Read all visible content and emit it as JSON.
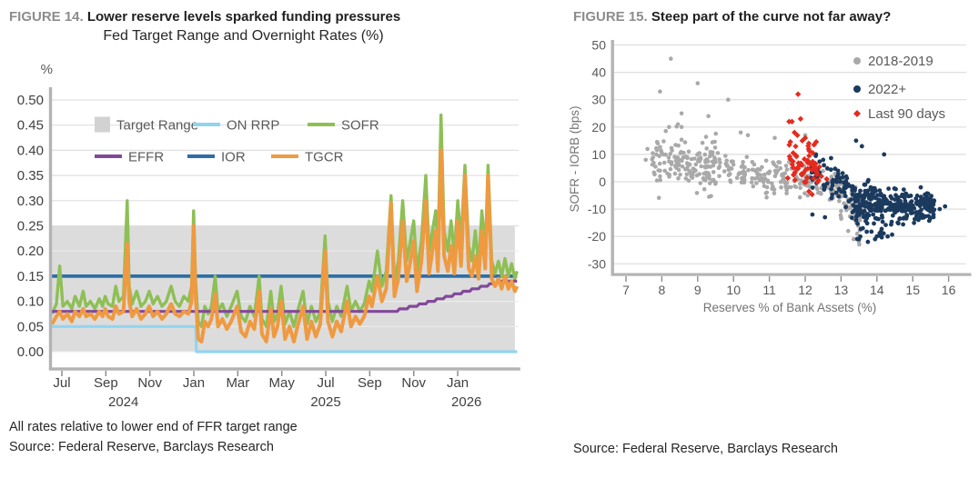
{
  "fig14": {
    "figure_label": "FIGURE 14.",
    "figure_title": "Lower reserve levels sparked funding pressures",
    "chart_title": "Fed Target Range and Overnight Rates (%)",
    "footnote": "All rates relative to lower end of FFR target range",
    "source": "Source: Federal Reserve, Barclays Research",
    "chart_data": {
      "type": "line",
      "unit_label": "%",
      "ylim": [
        0,
        0.5
      ],
      "ytick_step": 0.05,
      "xlim": [
        -0.45,
        20.77
      ],
      "xticks": [
        {
          "m": 0,
          "label": "Jul"
        },
        {
          "m": 2,
          "label": "Sep"
        },
        {
          "m": 4,
          "label": "Nov"
        },
        {
          "m": 6,
          "label": "Jan"
        },
        {
          "m": 8,
          "label": "Mar"
        },
        {
          "m": 10,
          "label": "May"
        },
        {
          "m": 12,
          "label": "Jul"
        },
        {
          "m": 14,
          "label": "Sep"
        },
        {
          "m": 16,
          "label": "Nov"
        },
        {
          "m": 18,
          "label": "Jan"
        }
      ],
      "year_labels": [
        {
          "m": 2.8,
          "label": "2024"
        },
        {
          "m": 12,
          "label": "2025"
        },
        {
          "m": 18.4,
          "label": "2026"
        }
      ],
      "target_range": {
        "label": "Target Range",
        "low": 0,
        "high": 0.25,
        "color": "#dcdcdc",
        "x_end": 20.6
      },
      "legend": [
        {
          "label": "Target Range",
          "color": "#d2d2d2",
          "swatch": "rect"
        },
        {
          "label": "ON RRP",
          "color": "#92d4f0",
          "swatch": "line"
        },
        {
          "label": "SOFR",
          "color": "#8ebf55",
          "swatch": "line"
        },
        {
          "label": "EFFR",
          "color": "#82489a",
          "swatch": "line"
        },
        {
          "label": "IOR",
          "color": "#2e6ea6",
          "swatch": "line"
        },
        {
          "label": "TGCR",
          "color": "#ef9a40",
          "swatch": "line"
        }
      ],
      "noisy": {
        "x": [
          -0.45,
          -0.25,
          -0.1,
          0.05,
          0.25,
          0.45,
          0.6,
          0.8,
          0.97,
          1.1,
          1.3,
          1.5,
          1.7,
          1.85,
          1.97,
          2.1,
          2.3,
          2.45,
          2.6,
          2.8,
          2.97,
          3.06,
          3.2,
          3.4,
          3.6,
          3.8,
          3.97,
          4.15,
          4.35,
          4.55,
          4.75,
          4.97,
          5.15,
          5.35,
          5.55,
          5.75,
          5.9,
          5.99,
          6.08,
          6.2,
          6.35,
          6.5,
          6.65,
          6.8,
          6.97,
          7.1,
          7.3,
          7.5,
          7.7,
          7.97,
          8.15,
          8.35,
          8.55,
          8.75,
          8.97,
          9.1,
          9.3,
          9.5,
          9.65,
          9.8,
          9.97,
          10.15,
          10.35,
          10.55,
          10.75,
          10.97,
          11.15,
          11.35,
          11.55,
          11.75,
          11.97,
          12.1,
          12.3,
          12.5,
          12.7,
          12.97,
          13.15,
          13.35,
          13.55,
          13.75,
          13.97,
          14.1,
          14.35,
          14.55,
          14.75,
          14.97,
          15.12,
          15.3,
          15.5,
          15.68,
          15.85,
          16.0,
          16.15,
          16.35,
          16.55,
          16.7,
          16.85,
          17.0,
          17.1,
          17.24,
          17.38,
          17.55,
          17.7,
          17.85,
          18.0,
          18.15,
          18.33,
          18.5,
          18.65,
          18.8,
          18.95,
          19.1,
          19.25,
          19.38,
          19.55,
          19.7,
          19.85,
          20.0,
          20.15,
          20.3,
          20.45,
          20.6,
          20.7
        ],
        "sofr": [
          0.075,
          0.095,
          0.17,
          0.09,
          0.1,
          0.085,
          0.11,
          0.09,
          0.12,
          0.09,
          0.1,
          0.085,
          0.105,
          0.09,
          0.11,
          0.095,
          0.09,
          0.13,
          0.1,
          0.11,
          0.3,
          0.13,
          0.095,
          0.12,
          0.09,
          0.1,
          0.12,
          0.095,
          0.11,
          0.09,
          0.1,
          0.13,
          0.1,
          0.09,
          0.11,
          0.1,
          0.13,
          0.28,
          0.14,
          0.06,
          0.05,
          0.09,
          0.075,
          0.09,
          0.15,
          0.08,
          0.095,
          0.07,
          0.09,
          0.12,
          0.07,
          0.06,
          0.09,
          0.07,
          0.15,
          0.065,
          0.05,
          0.12,
          0.06,
          0.075,
          0.13,
          0.055,
          0.08,
          0.05,
          0.085,
          0.12,
          0.055,
          0.09,
          0.06,
          0.08,
          0.23,
          0.1,
          0.06,
          0.09,
          0.07,
          0.13,
          0.08,
          0.1,
          0.08,
          0.095,
          0.14,
          0.12,
          0.2,
          0.13,
          0.16,
          0.31,
          0.14,
          0.18,
          0.3,
          0.18,
          0.22,
          0.26,
          0.16,
          0.22,
          0.35,
          0.2,
          0.24,
          0.28,
          0.2,
          0.47,
          0.24,
          0.2,
          0.26,
          0.19,
          0.3,
          0.22,
          0.37,
          0.21,
          0.18,
          0.24,
          0.17,
          0.28,
          0.2,
          0.37,
          0.18,
          0.155,
          0.18,
          0.15,
          0.185,
          0.15,
          0.175,
          0.145,
          0.16
        ],
        "tgcr": [
          0.055,
          0.07,
          0.08,
          0.065,
          0.075,
          0.06,
          0.08,
          0.07,
          0.085,
          0.07,
          0.075,
          0.065,
          0.08,
          0.07,
          0.085,
          0.07,
          0.065,
          0.09,
          0.075,
          0.08,
          0.215,
          0.1,
          0.07,
          0.085,
          0.065,
          0.075,
          0.09,
          0.07,
          0.08,
          0.065,
          0.075,
          0.095,
          0.075,
          0.07,
          0.08,
          0.075,
          0.1,
          0.25,
          0.11,
          0.025,
          0.02,
          0.06,
          0.05,
          0.065,
          0.115,
          0.05,
          0.065,
          0.045,
          0.06,
          0.09,
          0.04,
          0.03,
          0.06,
          0.045,
          0.12,
          0.035,
          0.02,
          0.085,
          0.03,
          0.05,
          0.1,
          0.025,
          0.05,
          0.02,
          0.055,
          0.09,
          0.025,
          0.06,
          0.03,
          0.055,
          0.2,
          0.06,
          0.03,
          0.06,
          0.04,
          0.1,
          0.05,
          0.07,
          0.055,
          0.07,
          0.11,
          0.09,
          0.15,
          0.1,
          0.125,
          0.295,
          0.11,
          0.145,
          0.26,
          0.14,
          0.18,
          0.22,
          0.12,
          0.18,
          0.3,
          0.155,
          0.2,
          0.24,
          0.16,
          0.4,
          0.19,
          0.16,
          0.21,
          0.155,
          0.26,
          0.17,
          0.35,
          0.165,
          0.15,
          0.19,
          0.145,
          0.24,
          0.165,
          0.35,
          0.145,
          0.13,
          0.145,
          0.125,
          0.15,
          0.125,
          0.14,
          0.12,
          0.13
        ]
      },
      "series": [
        {
          "name": "ON RRP",
          "color": "#92d4f0",
          "width": 3.2,
          "points": [
            [
              -0.45,
              0.05
            ],
            [
              6.08,
              0.05
            ],
            [
              6.12,
              0.0
            ],
            [
              20.7,
              0.0
            ]
          ]
        },
        {
          "name": "IOR",
          "color": "#2e6ea6",
          "width": 3.8,
          "points": [
            [
              -0.45,
              0.15
            ],
            [
              20.7,
              0.15
            ]
          ]
        },
        {
          "name": "SOFR",
          "color": "#8ebf55",
          "width": 3.4,
          "ykey": "sofr"
        },
        {
          "name": "EFFR",
          "color": "#82489a",
          "width": 3.2,
          "points": [
            [
              -0.45,
              0.08
            ],
            [
              15.25,
              0.08
            ],
            [
              15.35,
              0.085
            ],
            [
              15.7,
              0.085
            ],
            [
              15.8,
              0.09
            ],
            [
              16.15,
              0.09
            ],
            [
              16.25,
              0.095
            ],
            [
              16.55,
              0.095
            ],
            [
              16.65,
              0.1
            ],
            [
              16.95,
              0.1
            ],
            [
              17.05,
              0.105
            ],
            [
              17.35,
              0.105
            ],
            [
              17.45,
              0.11
            ],
            [
              17.75,
              0.11
            ],
            [
              17.85,
              0.115
            ],
            [
              18.15,
              0.115
            ],
            [
              18.25,
              0.12
            ],
            [
              18.55,
              0.12
            ],
            [
              18.65,
              0.125
            ],
            [
              18.95,
              0.125
            ],
            [
              19.05,
              0.13
            ],
            [
              19.35,
              0.13
            ],
            [
              19.45,
              0.135
            ],
            [
              19.75,
              0.135
            ],
            [
              19.85,
              0.14
            ],
            [
              20.7,
              0.14
            ]
          ]
        },
        {
          "name": "TGCR",
          "color": "#ef9a40",
          "width": 4,
          "ykey": "tgcr"
        }
      ]
    }
  },
  "fig15": {
    "figure_label": "FIGURE 15.",
    "figure_title": "Steep part of the curve not far away?",
    "source": "Source: Federal Reserve, Barclays Research",
    "chart_data": {
      "type": "scatter",
      "xlabel": "Reserves % of Bank Assets (%)",
      "ylabel": "SOFR - IORB (bps)",
      "xlim": [
        6.6,
        16.45
      ],
      "ylim": [
        -34,
        52
      ],
      "xticks": [
        7,
        8,
        9,
        10,
        11,
        12,
        13,
        14,
        15,
        16
      ],
      "yticks": [
        50,
        40,
        30,
        20,
        10,
        0,
        -10,
        -20,
        -30
      ],
      "legend": [
        {
          "name": "2018-2019",
          "color": "#a9a9a9",
          "marker": "circle"
        },
        {
          "name": "2022+",
          "color": "#1b3a5e",
          "marker": "circle"
        },
        {
          "name": "Last 90 days",
          "color": "#e42b1e",
          "marker": "diamond"
        }
      ],
      "series": [
        {
          "name": "2018-2019",
          "color": "#a9a9a9",
          "marker": "circle",
          "size": 2.3,
          "clusters": [
            {
              "n": 160,
              "x0": 7.7,
              "x1": 9.6,
              "y0": 7,
              "y1": 6,
              "sd": 4.5
            },
            {
              "n": 100,
              "x0": 9.6,
              "x1": 11.4,
              "y0": 5,
              "y1": 2,
              "sd": 3.5
            },
            {
              "n": 90,
              "x0": 11.4,
              "x1": 13.0,
              "y0": 1,
              "y1": -2,
              "sd": 3.2
            },
            {
              "n": 60,
              "x0": 12.9,
              "x1": 13.6,
              "y0": -5,
              "y1": -13,
              "sd": 4.5
            }
          ],
          "outliers": [
            [
              8.25,
              45
            ],
            [
              9.0,
              36
            ],
            [
              7.95,
              33
            ],
            [
              9.85,
              30
            ],
            [
              8.55,
              25
            ],
            [
              9.3,
              24
            ],
            [
              8.45,
              21
            ],
            [
              8.2,
              20
            ],
            [
              8.55,
              20
            ],
            [
              10.2,
              18
            ],
            [
              10.4,
              17
            ],
            [
              12.0,
              17
            ],
            [
              11.15,
              16
            ],
            [
              7.6,
              12
            ],
            [
              7.55,
              8
            ],
            [
              13.2,
              -18
            ],
            [
              13.35,
              -21
            ],
            [
              13.5,
              -22
            ],
            [
              13.45,
              -19
            ]
          ]
        },
        {
          "name": "2022+",
          "color": "#1b3a5e",
          "marker": "circle",
          "size": 2.4,
          "clusters": [
            {
              "n": 320,
              "x0": 13.3,
              "x1": 15.6,
              "y0": -8,
              "y1": -9,
              "sd": 3.2
            },
            {
              "n": 70,
              "x0": 12.15,
              "x1": 13.35,
              "y0": 3,
              "y1": -3,
              "sd": 3.5
            },
            {
              "n": 14,
              "x0": 13.4,
              "x1": 14.5,
              "y0": -18,
              "y1": -19,
              "sd": 1.5
            }
          ],
          "outliers": [
            [
              13.42,
              15
            ],
            [
              13.58,
              13
            ],
            [
              12.3,
              10
            ],
            [
              12.5,
              8
            ],
            [
              14.2,
              10
            ],
            [
              15.9,
              -9
            ],
            [
              15.75,
              -10
            ],
            [
              13.5,
              -21
            ],
            [
              13.75,
              -22
            ],
            [
              13.95,
              -21
            ],
            [
              14.3,
              -20
            ],
            [
              12.2,
              -12
            ],
            [
              12.55,
              -13
            ]
          ]
        },
        {
          "name": "Last 90 days",
          "color": "#e42b1e",
          "marker": "diamond",
          "size": 3.2,
          "clusters": [
            {
              "n": 60,
              "x0": 11.5,
              "x1": 12.4,
              "y0": 8,
              "y1": 3,
              "sd": 4
            }
          ],
          "outliers": [
            [
              11.8,
              32
            ],
            [
              11.55,
              22
            ],
            [
              11.63,
              22
            ],
            [
              11.87,
              23
            ],
            [
              11.7,
              18
            ],
            [
              11.78,
              17
            ],
            [
              12.0,
              16
            ],
            [
              11.92,
              15
            ],
            [
              12.1,
              14
            ],
            [
              12.45,
              2
            ],
            [
              12.6,
              1
            ]
          ]
        }
      ]
    }
  }
}
